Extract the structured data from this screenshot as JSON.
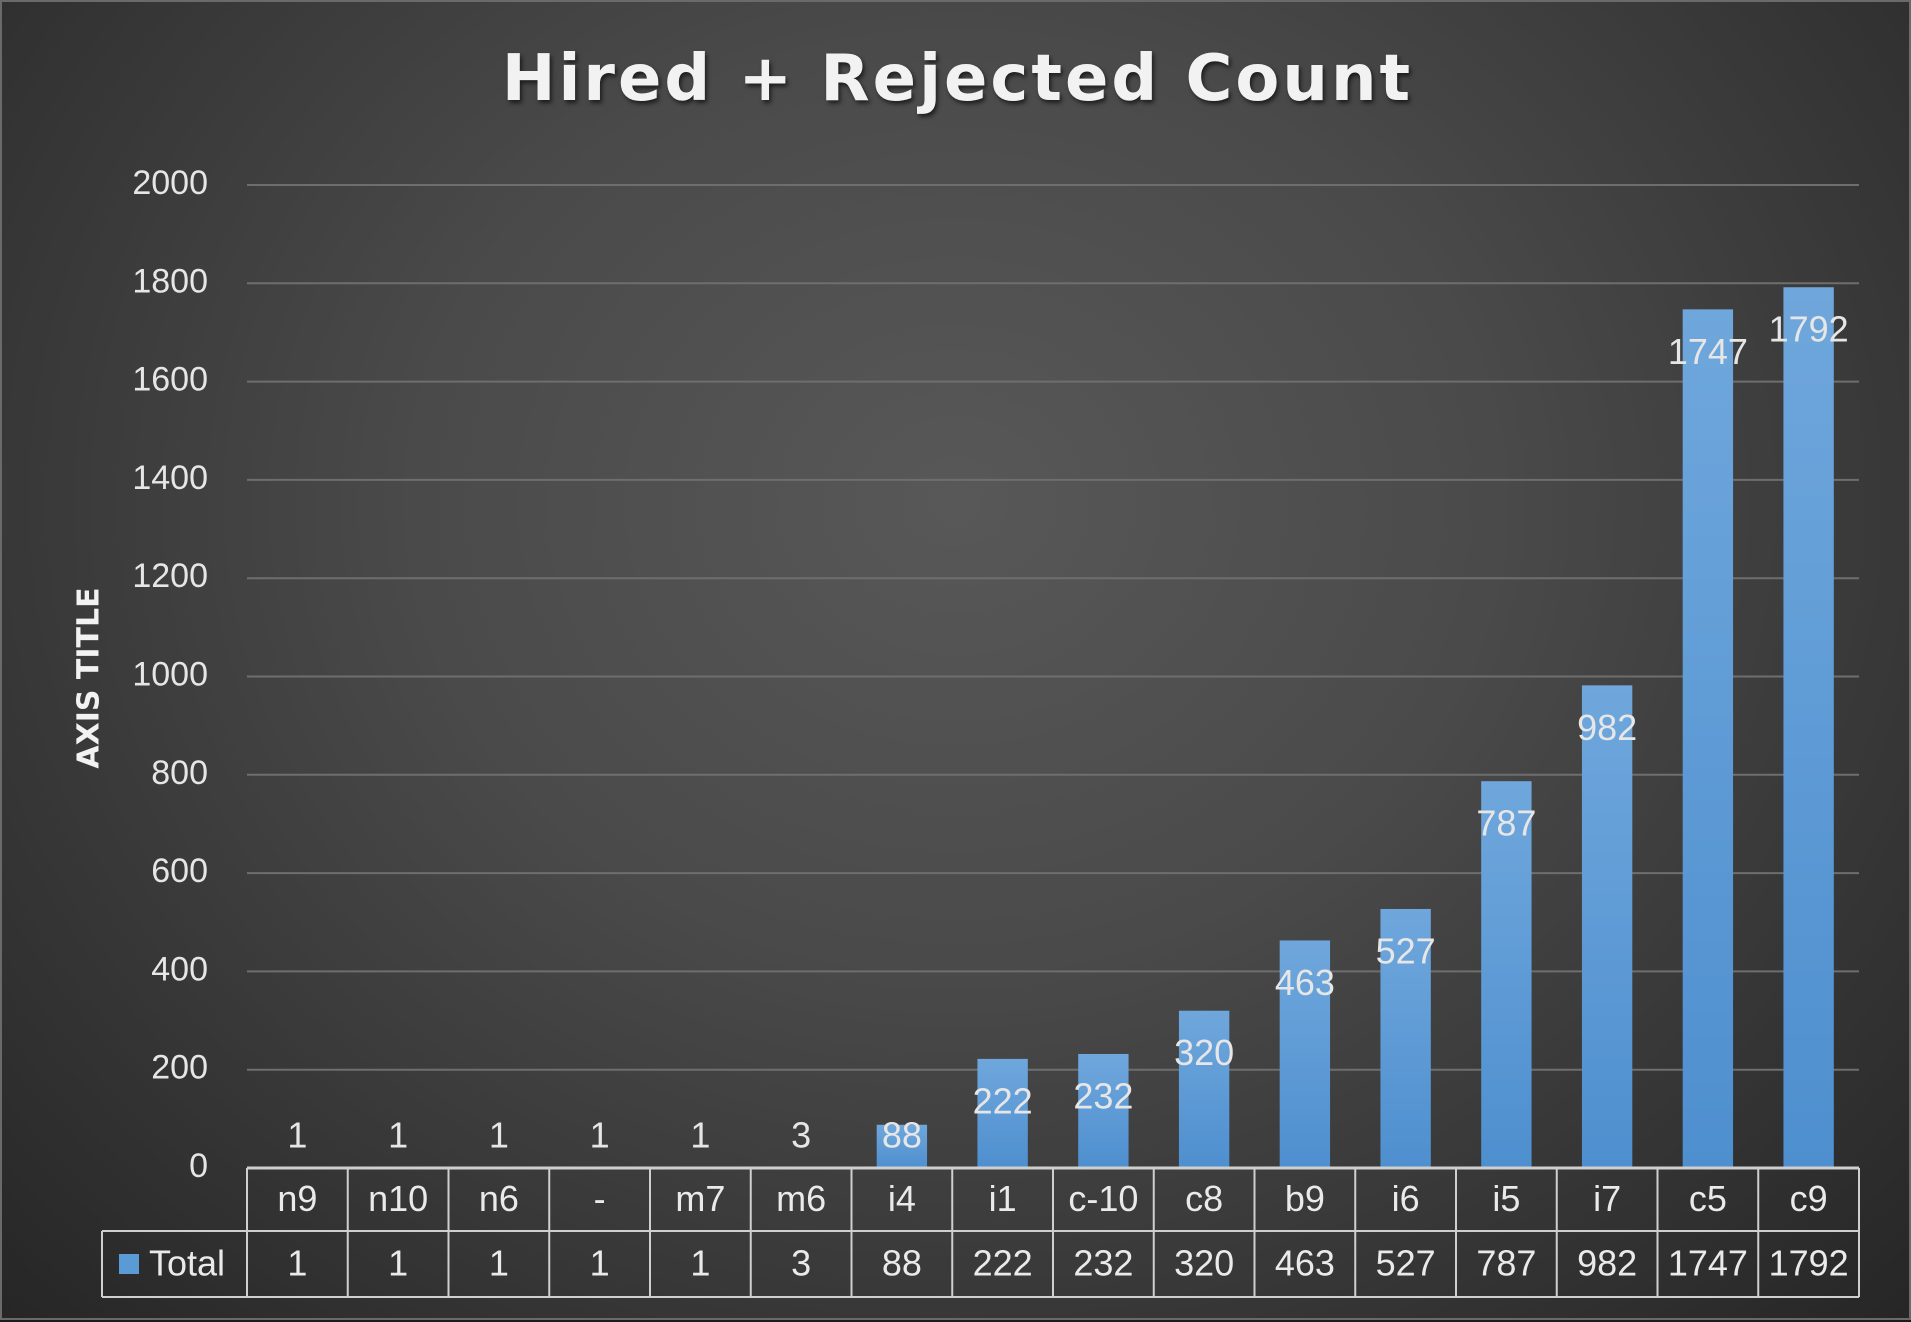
{
  "chart_data": {
    "type": "bar",
    "title": "Hired + Rejected Count",
    "xlabel": "",
    "ylabel": "AXIS TITLE",
    "ylim": [
      0,
      2000
    ],
    "yticks": [
      0,
      200,
      400,
      600,
      800,
      1000,
      1200,
      1400,
      1600,
      1800,
      2000
    ],
    "grid": true,
    "legend": "data-table",
    "categories": [
      "n9",
      "n10",
      "n6",
      "-",
      "m7",
      "m6",
      "i4",
      "i1",
      "c-10",
      "c8",
      "b9",
      "i6",
      "i5",
      "i7",
      "c5",
      "c9"
    ],
    "series": [
      {
        "name": "Total",
        "color": "#5b9bd5",
        "values": [
          1,
          1,
          1,
          1,
          1,
          3,
          88,
          222,
          232,
          320,
          463,
          527,
          787,
          982,
          1747,
          1792
        ]
      }
    ]
  }
}
